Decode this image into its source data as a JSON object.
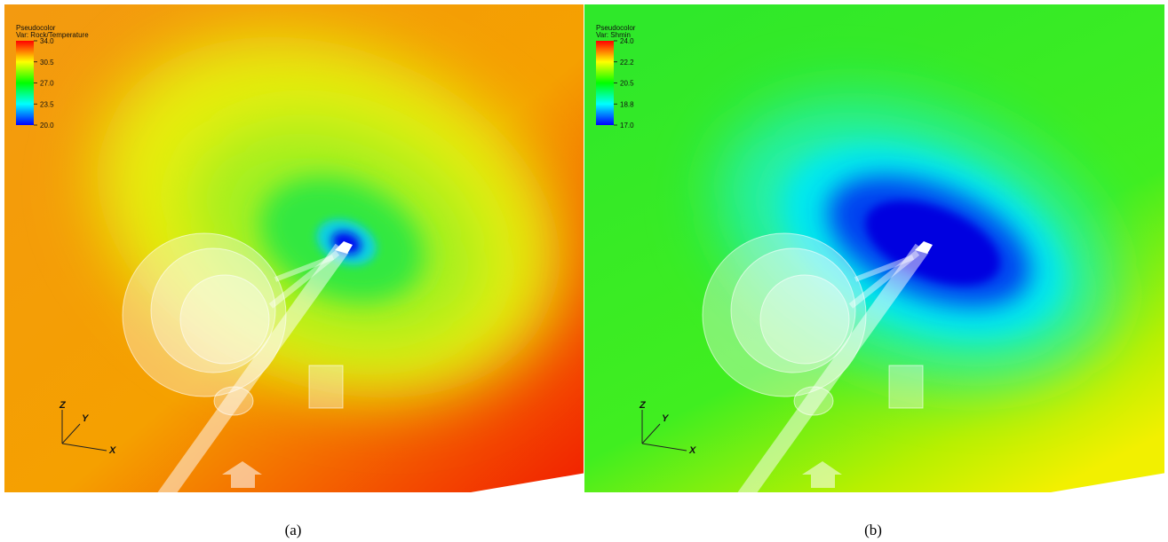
{
  "panels": [
    {
      "legend": {
        "title": "Pseudocolor",
        "var": "Var: Rock/Temperature",
        "ticks": [
          "34.0",
          "30.5",
          "27.0",
          "23.5",
          "20.0"
        ]
      },
      "axes": {
        "z": "Z",
        "y": "Y",
        "x": "X"
      },
      "caption": "(a)"
    },
    {
      "legend": {
        "title": "Pseudocolor",
        "var": "Var: Shmin",
        "ticks": [
          "24.0",
          "22.2",
          "20.5",
          "18.8",
          "17.0"
        ]
      },
      "axes": {
        "z": "Z",
        "y": "Y",
        "x": "X"
      },
      "caption": "(b)"
    }
  ]
}
